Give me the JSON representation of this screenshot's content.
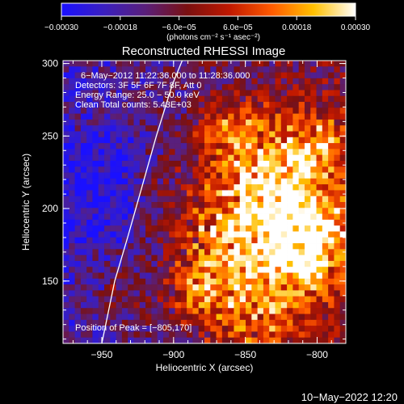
{
  "chart_data": {
    "type": "heatmap",
    "title": "Reconstructed RHESSI Image",
    "xlabel": "Heliocentric X (arcsec)",
    "ylabel": "Heliocentric Y (arcsec)",
    "xlim": [
      -977,
      -780
    ],
    "ylim": [
      107,
      302
    ],
    "x_ticks": [
      -950,
      -900,
      -850,
      -800
    ],
    "x_tick_labels": [
      "−950",
      "−900",
      "−850",
      "−800"
    ],
    "y_ticks": [
      150,
      200,
      250,
      300
    ],
    "y_tick_labels": [
      "150",
      "200",
      "250",
      "300"
    ],
    "colorbar": {
      "range": [
        -0.0003,
        0.0003
      ],
      "ticks": [
        -0.0003,
        -0.00018,
        -6e-05,
        6e-05,
        0.00018,
        0.0003
      ],
      "tick_labels": [
        "−0.00030",
        "−0.00018",
        "−6.0e−05",
        "6.0e−05",
        "0.00018",
        "0.00030"
      ],
      "unit_label": "(photons cm⁻² s⁻¹ asec⁻²)",
      "colors": [
        "#1a10ff",
        "#3a1fc0",
        "#5a1f7a",
        "#7a1010",
        "#c01800",
        "#ff5a00",
        "#ffc000",
        "#ffffff"
      ]
    },
    "info_lines": [
      "6−May−2012 11:22:36.000 to 11:28:36.000",
      "Detectors: 3F 5F 6F 7F 8F, Att 0",
      "Energy Range: 25.0 − 50.0 keV",
      "Clean      Total counts: 5.43E+03"
    ],
    "peak_label": "Position of Peak = [−805,170]",
    "peak_position": [
      -805,
      170
    ],
    "grid": false,
    "limb_curve": [
      [
        -950,
        107
      ],
      [
        -941,
        150
      ],
      [
        -932,
        180
      ],
      [
        -922,
        215
      ],
      [
        -912,
        250
      ],
      [
        -901,
        285
      ],
      [
        -894,
        302
      ]
    ],
    "background_color": "#000000",
    "foreground_color": "#ffffff"
  },
  "footer": {
    "timestamp": "10−May−2022 12:20"
  }
}
